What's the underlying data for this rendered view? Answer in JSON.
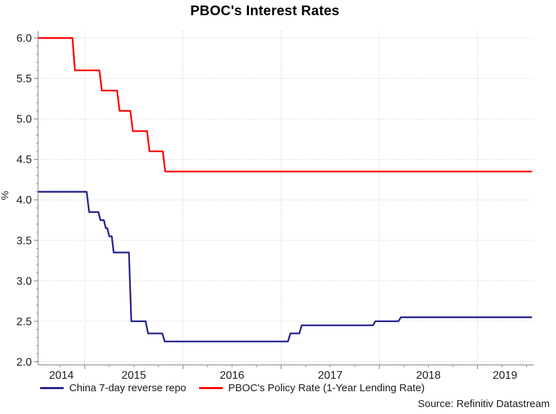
{
  "chart_data": {
    "type": "line",
    "title": "PBOC's Interest Rates",
    "ylabel": "%",
    "xlabel": "",
    "ylim": [
      2.0,
      6.0
    ],
    "xlim": [
      2014.525,
      2019.555
    ],
    "grid": "dotted",
    "legend_position": "bottom",
    "y_ticks": {
      "values": [
        6.0,
        5.5,
        5.0,
        4.5,
        4.0,
        3.5,
        3.0,
        2.5,
        2.0
      ],
      "labels": [
        "6.0",
        "5.5",
        "5.0",
        "4.5",
        "4.0",
        "3.5",
        "3.0",
        "2.5",
        "2.0"
      ],
      "minor_step": 0.1
    },
    "x_ticks": {
      "year_gridlines": [
        2015,
        2016,
        2017,
        2018,
        2019
      ],
      "labels": [
        {
          "label": "2014",
          "year": 2014
        },
        {
          "label": "2015",
          "year": 2015
        },
        {
          "label": "2016",
          "year": 2016
        },
        {
          "label": "2017",
          "year": 2017
        },
        {
          "label": "2018",
          "year": 2018
        },
        {
          "label": "2019",
          "year": 2019
        }
      ],
      "minor_step_years": 0.25
    },
    "series": [
      {
        "name": "China 7-day reverse repo",
        "color": "#22228e",
        "points": [
          [
            2014.525,
            4.1
          ],
          [
            2015.02,
            4.1
          ],
          [
            2015.045,
            3.85
          ],
          [
            2015.14,
            3.85
          ],
          [
            2015.16,
            3.75
          ],
          [
            2015.195,
            3.75
          ],
          [
            2015.215,
            3.65
          ],
          [
            2015.23,
            3.65
          ],
          [
            2015.25,
            3.55
          ],
          [
            2015.275,
            3.55
          ],
          [
            2015.295,
            3.35
          ],
          [
            2015.45,
            3.35
          ],
          [
            2015.475,
            2.5
          ],
          [
            2015.62,
            2.5
          ],
          [
            2015.645,
            2.35
          ],
          [
            2015.79,
            2.35
          ],
          [
            2015.815,
            2.25
          ],
          [
            2017.07,
            2.25
          ],
          [
            2017.095,
            2.35
          ],
          [
            2017.185,
            2.35
          ],
          [
            2017.21,
            2.45
          ],
          [
            2017.935,
            2.45
          ],
          [
            2017.96,
            2.5
          ],
          [
            2018.195,
            2.5
          ],
          [
            2018.22,
            2.55
          ],
          [
            2019.555,
            2.55
          ]
        ]
      },
      {
        "name": "PBOC's Policy Rate (1-Year Lending Rate)",
        "color": "#ff0000",
        "points": [
          [
            2014.525,
            6.0
          ],
          [
            2014.875,
            6.0
          ],
          [
            2014.9,
            5.6
          ],
          [
            2015.15,
            5.6
          ],
          [
            2015.175,
            5.35
          ],
          [
            2015.33,
            5.35
          ],
          [
            2015.355,
            5.1
          ],
          [
            2015.465,
            5.1
          ],
          [
            2015.49,
            4.85
          ],
          [
            2015.635,
            4.85
          ],
          [
            2015.66,
            4.6
          ],
          [
            2015.795,
            4.6
          ],
          [
            2015.82,
            4.35
          ],
          [
            2019.555,
            4.35
          ]
        ]
      }
    ],
    "source": "Source: Refinitiv Datastream",
    "colors": {
      "axis": "#8e8e8e",
      "grid": "#bfbfbf",
      "text": "#1a1a1a",
      "background": "#ffffff"
    }
  }
}
